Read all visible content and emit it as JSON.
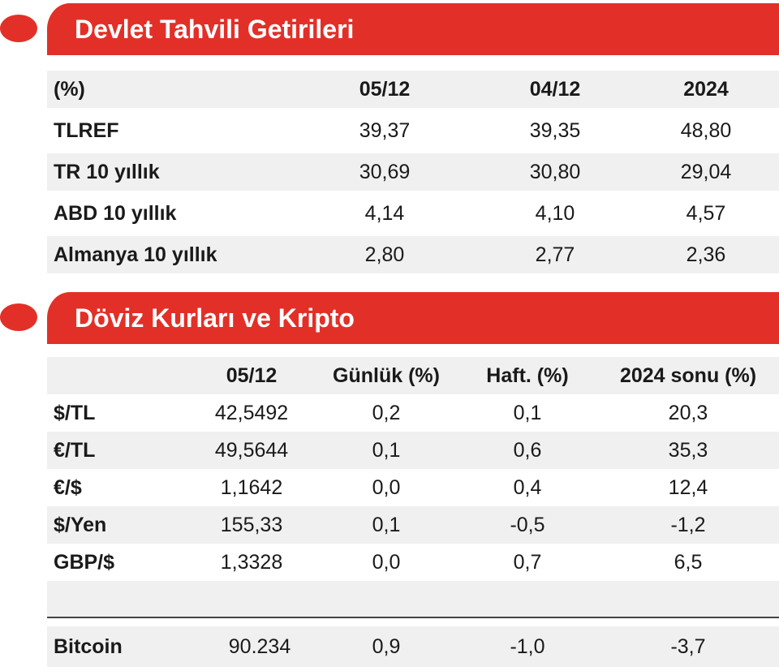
{
  "bonds": {
    "title": "Devlet Tahvili Getirileri",
    "headers": [
      "(%)",
      "05/12",
      "04/12",
      "2024"
    ],
    "rows": [
      {
        "label": "TLREF",
        "values": [
          "39,37",
          "39,35",
          "48,80"
        ]
      },
      {
        "label": "TR 10 yıllık",
        "values": [
          "30,69",
          "30,80",
          "29,04"
        ]
      },
      {
        "label": "ABD 10 yıllık",
        "values": [
          "4,14",
          "4,10",
          "4,57"
        ]
      },
      {
        "label": "Almanya 10 yıllık",
        "values": [
          "2,80",
          "2,77",
          "2,36"
        ]
      }
    ]
  },
  "fx": {
    "title": "Döviz Kurları ve Kripto",
    "headers": [
      "05/12",
      "Günlük (%)",
      "Haft. (%)",
      "2024 sonu (%)"
    ],
    "rows": [
      {
        "label": "$/TL",
        "values": [
          "42,5492",
          "0,2",
          "0,1",
          "20,3"
        ]
      },
      {
        "label": "€/TL",
        "values": [
          "49,5644",
          "0,1",
          "0,6",
          "35,3"
        ]
      },
      {
        "label": "€/$",
        "values": [
          "1,1642",
          "0,0",
          "0,4",
          "12,4"
        ]
      },
      {
        "label": "$/Yen",
        "values": [
          "155,33",
          "0,1",
          "-0,5",
          "-1,2"
        ]
      },
      {
        "label": "GBP/$",
        "values": [
          "1,3328",
          "0,0",
          "0,7",
          "6,5"
        ]
      }
    ],
    "crypto": {
      "label": "Bitcoin",
      "values": [
        "90.234",
        "0,9",
        "-1,0",
        "-3,7"
      ]
    }
  },
  "colors": {
    "accent": "#e23028",
    "row_shade": "#f0f0f0"
  }
}
